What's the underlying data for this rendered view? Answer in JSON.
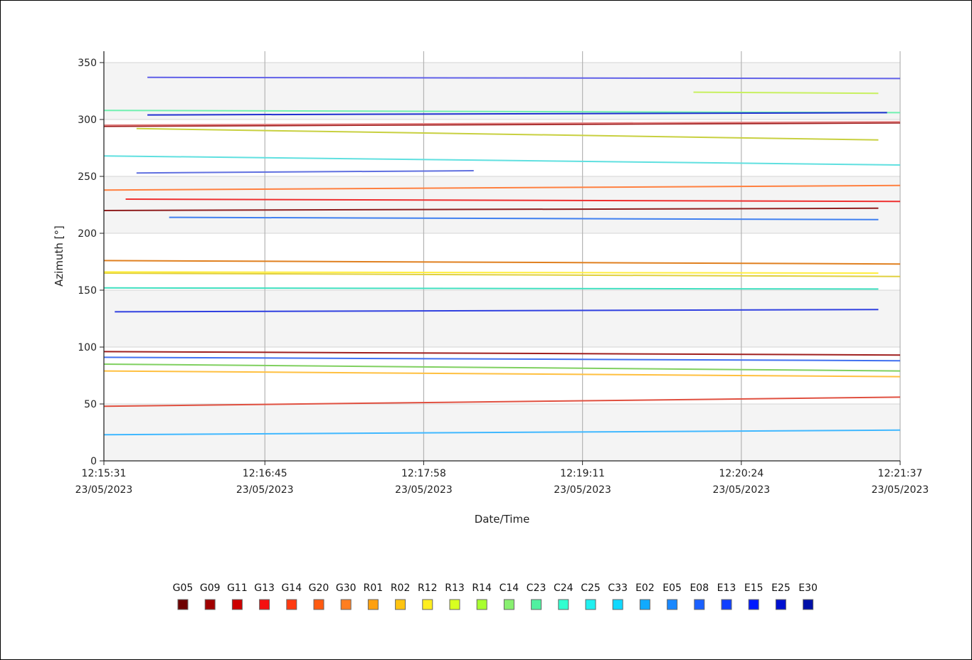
{
  "chart_data": {
    "type": "line",
    "xlabel": "Date/Time",
    "ylabel": "Azimuth [°]",
    "ylim": [
      0,
      360
    ],
    "yticks": [
      0,
      50,
      100,
      150,
      200,
      250,
      300,
      350
    ],
    "xlim": [
      "2023-05-23 12:15:31",
      "2023-05-23 12:21:37"
    ],
    "xticks": [
      {
        "time": "12:15:31",
        "date": "23/05/2023"
      },
      {
        "time": "12:16:45",
        "date": "23/05/2023"
      },
      {
        "time": "12:17:58",
        "date": "23/05/2023"
      },
      {
        "time": "12:19:11",
        "date": "23/05/2023"
      },
      {
        "time": "12:20:24",
        "date": "23/05/2023"
      },
      {
        "time": "12:21:37",
        "date": "23/05/2023"
      }
    ],
    "grid": true,
    "legend_position": "bottom",
    "legend": [
      {
        "name": "G05",
        "color": "#6e0000"
      },
      {
        "name": "G09",
        "color": "#a00000"
      },
      {
        "name": "G11",
        "color": "#cc0000"
      },
      {
        "name": "G13",
        "color": "#f51010"
      },
      {
        "name": "G14",
        "color": "#ff3a10"
      },
      {
        "name": "G20",
        "color": "#ff5a10"
      },
      {
        "name": "G30",
        "color": "#ff7e20"
      },
      {
        "name": "R01",
        "color": "#ffa010"
      },
      {
        "name": "R02",
        "color": "#ffc410"
      },
      {
        "name": "R12",
        "color": "#ffee20"
      },
      {
        "name": "R13",
        "color": "#d8ff20"
      },
      {
        "name": "R14",
        "color": "#a8ff30"
      },
      {
        "name": "C14",
        "color": "#88f070"
      },
      {
        "name": "C23",
        "color": "#50f0a0"
      },
      {
        "name": "C24",
        "color": "#30ffd0"
      },
      {
        "name": "C25",
        "color": "#20f0f0"
      },
      {
        "name": "C33",
        "color": "#10d8ff"
      },
      {
        "name": "E02",
        "color": "#10aaff"
      },
      {
        "name": "E05",
        "color": "#1a88ff"
      },
      {
        "name": "E08",
        "color": "#1a60ff"
      },
      {
        "name": "E13",
        "color": "#1040ff"
      },
      {
        "name": "E15",
        "color": "#0018ff"
      },
      {
        "name": "E25",
        "color": "#0010d0"
      },
      {
        "name": "E30",
        "color": "#0010a8"
      }
    ],
    "series": [
      {
        "color": "#6060e8",
        "x": [
          "12:15:51",
          "12:21:37"
        ],
        "y": [
          337,
          336
        ]
      },
      {
        "color": "#c8f060",
        "x": [
          "12:20:02",
          "12:21:27"
        ],
        "y": [
          324,
          323
        ]
      },
      {
        "color": "#70f0b0",
        "x": [
          "12:15:31",
          "12:21:37"
        ],
        "y": [
          308,
          306
        ]
      },
      {
        "color": "#2030d0",
        "x": [
          "12:15:51",
          "12:21:31"
        ],
        "y": [
          304,
          306
        ]
      },
      {
        "color": "#a02020",
        "x": [
          "12:15:31",
          "12:21:37"
        ],
        "y": [
          294,
          297
        ]
      },
      {
        "color": "#e08080",
        "x": [
          "12:15:31",
          "12:21:37"
        ],
        "y": [
          295,
          298
        ]
      },
      {
        "color": "#c8d040",
        "x": [
          "12:15:46",
          "12:21:27"
        ],
        "y": [
          292,
          282
        ]
      },
      {
        "color": "#60e0e0",
        "x": [
          "12:15:31",
          "12:21:37"
        ],
        "y": [
          268,
          260
        ]
      },
      {
        "color": "#6070e0",
        "x": [
          "12:15:46",
          "12:18:21"
        ],
        "y": [
          253,
          255
        ]
      },
      {
        "color": "#ff8040",
        "x": [
          "12:15:31",
          "12:21:37"
        ],
        "y": [
          238,
          242
        ]
      },
      {
        "color": "#ee3030",
        "x": [
          "12:15:41",
          "12:21:37"
        ],
        "y": [
          230,
          228
        ]
      },
      {
        "color": "#902020",
        "x": [
          "12:15:31",
          "12:21:27"
        ],
        "y": [
          220,
          222
        ]
      },
      {
        "color": "#4080f0",
        "x": [
          "12:16:01",
          "12:21:27"
        ],
        "y": [
          214,
          212
        ]
      },
      {
        "color": "#e08020",
        "x": [
          "12:15:31",
          "12:21:37"
        ],
        "y": [
          176,
          173
        ]
      },
      {
        "color": "#e0d040",
        "x": [
          "12:15:31",
          "12:21:37"
        ],
        "y": [
          165,
          162
        ]
      },
      {
        "color": "#ffee40",
        "x": [
          "12:15:31",
          "12:21:27"
        ],
        "y": [
          166,
          165
        ]
      },
      {
        "color": "#40e0c0",
        "x": [
          "12:15:31",
          "12:21:27"
        ],
        "y": [
          152,
          151
        ]
      },
      {
        "color": "#3040e0",
        "x": [
          "12:15:36",
          "12:21:27"
        ],
        "y": [
          131,
          133
        ]
      },
      {
        "color": "#a02020",
        "x": [
          "12:15:31",
          "12:21:37"
        ],
        "y": [
          96,
          93
        ]
      },
      {
        "color": "#4070f0",
        "x": [
          "12:15:31",
          "12:21:37"
        ],
        "y": [
          91,
          88
        ]
      },
      {
        "color": "#80d060",
        "x": [
          "12:15:31",
          "12:21:37"
        ],
        "y": [
          85,
          79
        ]
      },
      {
        "color": "#ffc040",
        "x": [
          "12:15:31",
          "12:21:37"
        ],
        "y": [
          79,
          74
        ]
      },
      {
        "color": "#e05040",
        "x": [
          "12:15:31",
          "12:21:37"
        ],
        "y": [
          48,
          56
        ]
      },
      {
        "color": "#40b8ff",
        "x": [
          "12:15:31",
          "12:21:37"
        ],
        "y": [
          23,
          27
        ]
      }
    ]
  }
}
